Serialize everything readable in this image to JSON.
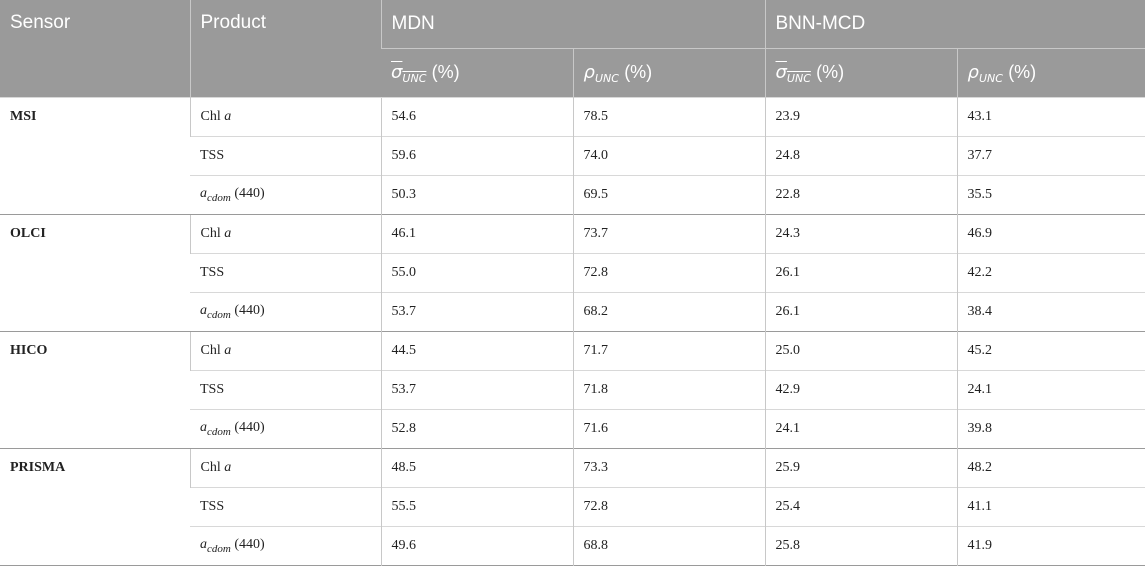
{
  "headers": {
    "sensor": "Sensor",
    "product": "Product",
    "mdn": "MDN",
    "bnn": "BNN-MCD",
    "sigma_symbol": "σ",
    "sigma_sub": "UNC",
    "rho_symbol": "ρ",
    "rho_sub": "UNC",
    "percent": "(%)"
  },
  "products": {
    "chl_prefix": "Chl",
    "chl_italic": "a",
    "tss": "TSS",
    "acdom_a": "a",
    "acdom_sub": "cdom",
    "acdom_wl": "(440)"
  },
  "rows": [
    {
      "sensor": "MSI",
      "mdn_sigma": "54.6",
      "mdn_rho": "78.5",
      "bnn_sigma": "23.9",
      "bnn_rho": "43.1"
    },
    {
      "mdn_sigma": "59.6",
      "mdn_rho": "74.0",
      "bnn_sigma": "24.8",
      "bnn_rho": "37.7"
    },
    {
      "mdn_sigma": "50.3",
      "mdn_rho": "69.5",
      "bnn_sigma": "22.8",
      "bnn_rho": "35.5"
    },
    {
      "sensor": "OLCI",
      "mdn_sigma": "46.1",
      "mdn_rho": "73.7",
      "bnn_sigma": "24.3",
      "bnn_rho": "46.9"
    },
    {
      "mdn_sigma": "55.0",
      "mdn_rho": "72.8",
      "bnn_sigma": "26.1",
      "bnn_rho": "42.2"
    },
    {
      "mdn_sigma": "53.7",
      "mdn_rho": "68.2",
      "bnn_sigma": "26.1",
      "bnn_rho": "38.4"
    },
    {
      "sensor": "HICO",
      "mdn_sigma": "44.5",
      "mdn_rho": "71.7",
      "bnn_sigma": "25.0",
      "bnn_rho": "45.2"
    },
    {
      "mdn_sigma": "53.7",
      "mdn_rho": "71.8",
      "bnn_sigma": "42.9",
      "bnn_rho": "24.1"
    },
    {
      "mdn_sigma": "52.8",
      "mdn_rho": "71.6",
      "bnn_sigma": "24.1",
      "bnn_rho": "39.8"
    },
    {
      "sensor": "PRISMA",
      "mdn_sigma": "48.5",
      "mdn_rho": "73.3",
      "bnn_sigma": "25.9",
      "bnn_rho": "48.2"
    },
    {
      "mdn_sigma": "55.5",
      "mdn_rho": "72.8",
      "bnn_sigma": "25.4",
      "bnn_rho": "41.1"
    },
    {
      "mdn_sigma": "49.6",
      "mdn_rho": "68.8",
      "bnn_sigma": "25.8",
      "bnn_rho": "41.9"
    }
  ]
}
